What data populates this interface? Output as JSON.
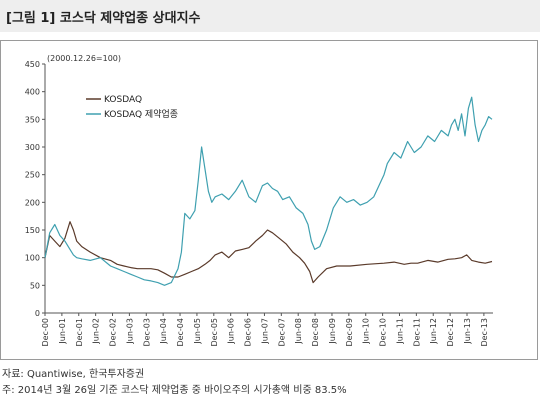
{
  "header": {
    "title": "[그림 1] 코스닥 제약업종 상대지수"
  },
  "notes": {
    "source": "자료: Quantiwise, 한국투자증권",
    "footnote": "주: 2014년 3월 26일 기준 코스닥 제약업종 중 바이오주의 시가총액 비중 83.5%"
  },
  "chart_data": {
    "type": "line",
    "annotation": "(2000.12.26=100)",
    "ylim": [
      0,
      450
    ],
    "yticks": [
      0,
      50,
      100,
      150,
      200,
      250,
      300,
      350,
      400,
      450
    ],
    "xlim": [
      2000.96,
      2014.23
    ],
    "x_tick_labels": [
      "Dec-00",
      "Jun-01",
      "Dec-01",
      "Jun-02",
      "Dec-02",
      "Jun-03",
      "Dec-03",
      "Jun-04",
      "Dec-04",
      "Jun-05",
      "Dec-05",
      "Jun-06",
      "Dec-06",
      "Jun-07",
      "Dec-07",
      "Jun-08",
      "Dec-08",
      "Jun-09",
      "Dec-09",
      "Jun-10",
      "Dec-10",
      "Jun-11",
      "Dec-11",
      "Jun-12",
      "Dec-12",
      "Jun-13",
      "Dec-13"
    ],
    "x_tick_years": [
      2000.96,
      2001.46,
      2001.96,
      2002.46,
      2002.96,
      2003.46,
      2003.96,
      2004.46,
      2004.96,
      2005.46,
      2005.96,
      2006.46,
      2006.96,
      2007.46,
      2007.96,
      2008.46,
      2008.96,
      2009.46,
      2009.96,
      2010.46,
      2010.96,
      2011.46,
      2011.96,
      2012.46,
      2012.96,
      2013.46,
      2013.96
    ],
    "grid": false,
    "legend_position": "upper-left",
    "series": [
      {
        "name": "KOSDAQ",
        "color": "#5a3a2a",
        "x": [
          2000.96,
          2001.1,
          2001.25,
          2001.4,
          2001.55,
          2001.7,
          2001.8,
          2001.9,
          2002.05,
          2002.3,
          2002.6,
          2002.9,
          2003.1,
          2003.3,
          2003.5,
          2003.7,
          2003.9,
          2004.1,
          2004.3,
          2004.5,
          2004.7,
          2004.9,
          2005.1,
          2005.3,
          2005.5,
          2005.7,
          2005.85,
          2006.0,
          2006.2,
          2006.4,
          2006.6,
          2006.8,
          2007.0,
          2007.2,
          2007.4,
          2007.55,
          2007.7,
          2007.9,
          2008.1,
          2008.3,
          2008.5,
          2008.65,
          2008.8,
          2008.9,
          2009.05,
          2009.3,
          2009.6,
          2010.0,
          2010.5,
          2011.0,
          2011.3,
          2011.6,
          2011.8,
          2012.0,
          2012.3,
          2012.6,
          2012.9,
          2013.1,
          2013.3,
          2013.45,
          2013.6,
          2013.8,
          2014.0,
          2014.2
        ],
        "values": [
          100,
          140,
          130,
          120,
          135,
          165,
          150,
          130,
          120,
          110,
          100,
          95,
          88,
          85,
          82,
          80,
          80,
          80,
          78,
          72,
          65,
          65,
          70,
          75,
          80,
          88,
          95,
          105,
          110,
          100,
          112,
          115,
          118,
          130,
          140,
          150,
          145,
          135,
          125,
          110,
          100,
          90,
          75,
          55,
          65,
          80,
          85,
          85,
          88,
          90,
          92,
          88,
          90,
          90,
          95,
          92,
          97,
          98,
          100,
          105,
          95,
          92,
          90,
          93
        ]
      },
      {
        "name": "KOSDAQ 제약업종",
        "color": "#3fa0b0",
        "x": [
          2000.96,
          2001.1,
          2001.25,
          2001.4,
          2001.55,
          2001.7,
          2001.8,
          2001.9,
          2002.05,
          2002.3,
          2002.6,
          2002.9,
          2003.1,
          2003.3,
          2003.5,
          2003.7,
          2003.9,
          2004.1,
          2004.3,
          2004.5,
          2004.7,
          2004.9,
          2005.0,
          2005.1,
          2005.25,
          2005.4,
          2005.5,
          2005.6,
          2005.7,
          2005.8,
          2005.9,
          2006.0,
          2006.2,
          2006.4,
          2006.6,
          2006.8,
          2007.0,
          2007.2,
          2007.4,
          2007.55,
          2007.7,
          2007.85,
          2008.0,
          2008.2,
          2008.4,
          2008.6,
          2008.75,
          2008.85,
          2008.95,
          2009.1,
          2009.3,
          2009.5,
          2009.7,
          2009.9,
          2010.1,
          2010.3,
          2010.5,
          2010.7,
          2010.85,
          2011.0,
          2011.1,
          2011.3,
          2011.5,
          2011.7,
          2011.9,
          2012.1,
          2012.3,
          2012.5,
          2012.7,
          2012.9,
          2013.0,
          2013.1,
          2013.2,
          2013.3,
          2013.4,
          2013.5,
          2013.6,
          2013.7,
          2013.8,
          2013.9,
          2014.0,
          2014.1,
          2014.2
        ],
        "values": [
          100,
          145,
          160,
          140,
          130,
          115,
          105,
          100,
          98,
          95,
          100,
          85,
          80,
          75,
          70,
          65,
          60,
          58,
          55,
          50,
          55,
          80,
          110,
          180,
          170,
          185,
          240,
          300,
          260,
          220,
          200,
          210,
          215,
          205,
          220,
          240,
          210,
          200,
          230,
          235,
          225,
          220,
          205,
          210,
          190,
          180,
          160,
          130,
          115,
          120,
          150,
          190,
          210,
          200,
          205,
          195,
          200,
          210,
          230,
          250,
          270,
          290,
          280,
          310,
          290,
          300,
          320,
          310,
          330,
          320,
          340,
          350,
          330,
          360,
          320,
          370,
          390,
          340,
          310,
          330,
          340,
          355,
          350
        ]
      }
    ]
  }
}
